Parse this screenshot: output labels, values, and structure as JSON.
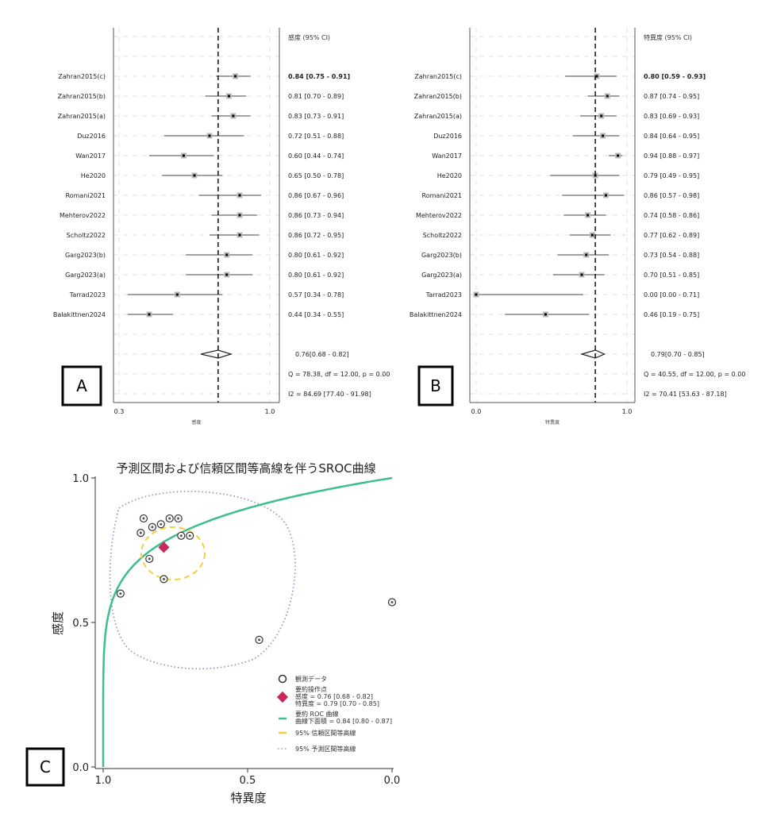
{
  "chart_data": [
    {
      "type": "forest",
      "panel_label": "A",
      "column_header": "感度 (95% CI)",
      "xlabel": "感度",
      "xlim": [
        0.3,
        1.0
      ],
      "xticks": [
        "0.3",
        "1.0"
      ],
      "studies": [
        {
          "name": "Zahran2015(c)",
          "est": 0.84,
          "lo": 0.75,
          "hi": 0.91,
          "text": "0.84 [0.75 - 0.91]"
        },
        {
          "name": "Zahran2015(b)",
          "est": 0.81,
          "lo": 0.7,
          "hi": 0.89,
          "text": "0.81 [0.70 - 0.89]"
        },
        {
          "name": "Zahran2015(a)",
          "est": 0.83,
          "lo": 0.73,
          "hi": 0.91,
          "text": "0.83 [0.73 - 0.91]"
        },
        {
          "name": "Duz2016",
          "est": 0.72,
          "lo": 0.51,
          "hi": 0.88,
          "text": "0.72 [0.51 - 0.88]"
        },
        {
          "name": "Wan2017",
          "est": 0.6,
          "lo": 0.44,
          "hi": 0.74,
          "text": "0.60 [0.44 - 0.74]"
        },
        {
          "name": "He2020",
          "est": 0.65,
          "lo": 0.5,
          "hi": 0.78,
          "text": "0.65 [0.50 - 0.78]"
        },
        {
          "name": "Romani2021",
          "est": 0.86,
          "lo": 0.67,
          "hi": 0.96,
          "text": "0.86 [0.67 - 0.96]"
        },
        {
          "name": "Mehterov2022",
          "est": 0.86,
          "lo": 0.73,
          "hi": 0.94,
          "text": "0.86 [0.73 - 0.94]"
        },
        {
          "name": "Scholtz2022",
          "est": 0.86,
          "lo": 0.72,
          "hi": 0.95,
          "text": "0.86 [0.72 - 0.95]"
        },
        {
          "name": "Garg2023(b)",
          "est": 0.8,
          "lo": 0.61,
          "hi": 0.92,
          "text": "0.80 [0.61 - 0.92]"
        },
        {
          "name": "Garg2023(a)",
          "est": 0.8,
          "lo": 0.61,
          "hi": 0.92,
          "text": "0.80 [0.61 - 0.92]"
        },
        {
          "name": "Tarrad2023",
          "est": 0.57,
          "lo": 0.34,
          "hi": 0.78,
          "text": "0.57 [0.34 - 0.78]"
        },
        {
          "name": "Balakittnen2024",
          "est": 0.44,
          "lo": 0.34,
          "hi": 0.55,
          "text": "0.44 [0.34 - 0.55]"
        }
      ],
      "pooled": {
        "est": 0.76,
        "lo": 0.68,
        "hi": 0.82,
        "text": "0.76[0.68 - 0.82]"
      },
      "heterogeneity_q": "Q = 78.38, df = 12.00, p =  0.00",
      "heterogeneity_i2": "I2 = 84.69 [77.40 - 91.98]"
    },
    {
      "type": "forest",
      "panel_label": "B",
      "column_header": "特異度 (95% CI)",
      "xlabel": "特異度",
      "xlim": [
        0.0,
        1.0
      ],
      "xticks": [
        "0.0",
        "1.0"
      ],
      "studies": [
        {
          "name": "Zahran2015(c)",
          "est": 0.8,
          "lo": 0.59,
          "hi": 0.93,
          "text": "0.80 [0.59 - 0.93]"
        },
        {
          "name": "Zahran2015(b)",
          "est": 0.87,
          "lo": 0.74,
          "hi": 0.95,
          "text": "0.87 [0.74 - 0.95]"
        },
        {
          "name": "Zahran2015(a)",
          "est": 0.83,
          "lo": 0.69,
          "hi": 0.93,
          "text": "0.83 [0.69 - 0.93]"
        },
        {
          "name": "Duz2016",
          "est": 0.84,
          "lo": 0.64,
          "hi": 0.95,
          "text": "0.84 [0.64 - 0.95]"
        },
        {
          "name": "Wan2017",
          "est": 0.94,
          "lo": 0.88,
          "hi": 0.97,
          "text": "0.94 [0.88 - 0.97]"
        },
        {
          "name": "He2020",
          "est": 0.79,
          "lo": 0.49,
          "hi": 0.95,
          "text": "0.79 [0.49 - 0.95]"
        },
        {
          "name": "Romani2021",
          "est": 0.86,
          "lo": 0.57,
          "hi": 0.98,
          "text": "0.86 [0.57 - 0.98]"
        },
        {
          "name": "Mehterov2022",
          "est": 0.74,
          "lo": 0.58,
          "hi": 0.86,
          "text": "0.74 [0.58 - 0.86]"
        },
        {
          "name": "Scholtz2022",
          "est": 0.77,
          "lo": 0.62,
          "hi": 0.89,
          "text": "0.77 [0.62 - 0.89]"
        },
        {
          "name": "Garg2023(b)",
          "est": 0.73,
          "lo": 0.54,
          "hi": 0.88,
          "text": "0.73 [0.54 - 0.88]"
        },
        {
          "name": "Garg2023(a)",
          "est": 0.7,
          "lo": 0.51,
          "hi": 0.85,
          "text": "0.70 [0.51 - 0.85]"
        },
        {
          "name": "Tarrad2023",
          "est": 0.0,
          "lo": 0.0,
          "hi": 0.71,
          "text": "0.00 [0.00 - 0.71]"
        },
        {
          "name": "Balakittnen2024",
          "est": 0.46,
          "lo": 0.19,
          "hi": 0.75,
          "text": "0.46 [0.19 - 0.75]"
        }
      ],
      "pooled": {
        "est": 0.79,
        "lo": 0.7,
        "hi": 0.85,
        "text": "0.79[0.70 - 0.85]"
      },
      "heterogeneity_q": "Q = 40.55, df = 12.00, p =  0.00",
      "heterogeneity_i2": "I2 = 70.41 [53.63 - 87.18]"
    },
    {
      "type": "scatter",
      "panel_label": "C",
      "title": "予測区間および信頼区間等高線を伴うSROC曲線",
      "xlabel": "特異度",
      "ylabel": "感度",
      "xlim": [
        1.0,
        0.0
      ],
      "ylim": [
        0.0,
        1.0
      ],
      "xticks": [
        "1.0",
        "0.5",
        "0.0"
      ],
      "yticks": [
        "0.0",
        "0.5",
        "1.0"
      ],
      "summary_point": {
        "sensitivity": 0.76,
        "specificity": 0.79
      },
      "auc": 0.84,
      "legend": {
        "observed": "観測データ",
        "summary_title": "要約操作点",
        "summary_sens": "感度 = 0.76 [0.68 - 0.82]",
        "summary_spec": "特異度 = 0.79 [0.70 - 0.85]",
        "roc_title": "要約 ROC 曲線",
        "roc_auc": "曲線下面積 = 0.84 [0.80 - 0.87]",
        "confidence": "95% 信頼区間等高線",
        "prediction": "95% 予測区間等高線"
      },
      "colors": {
        "curve": "#3cbf8c",
        "confidence": "#f2d13a",
        "prediction": "#a88fc8",
        "summary": "#c8285a"
      }
    }
  ]
}
